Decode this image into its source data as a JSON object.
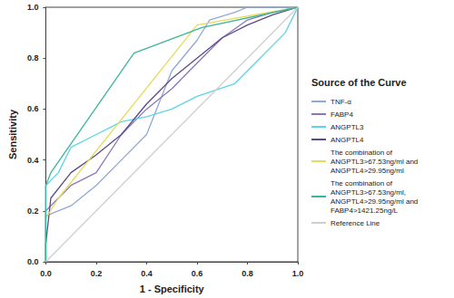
{
  "chart_data": {
    "type": "line",
    "x_label": "1 - Specificity",
    "y_label": "Sensitivity",
    "legend_title": "Source of the Curve",
    "legend": "right",
    "grid": false,
    "xlim": [
      0,
      1
    ],
    "ylim": [
      0,
      1
    ],
    "xticks": [
      {
        "value": 0,
        "label": "0.0"
      },
      0.2,
      0.4,
      0.6,
      0.8,
      {
        "value": 1,
        "label": "1.0"
      }
    ],
    "yticks": [
      {
        "value": 0,
        "label": "0.0"
      },
      0.2,
      0.4,
      0.6,
      0.8,
      {
        "value": 1,
        "label": "1.0"
      }
    ],
    "series": [
      {
        "name": "TNF-α",
        "color": "#8fa8d8",
        "marker": "none",
        "line_style": "solid",
        "x": [
          0,
          0,
          0.1,
          0.2,
          0.3,
          0.4,
          0.5,
          0.6,
          0.65,
          0.75,
          0.8,
          1
        ],
        "values": [
          0,
          0.18,
          0.22,
          0.3,
          0.4,
          0.5,
          0.75,
          0.87,
          0.95,
          0.98,
          1,
          1
        ]
      },
      {
        "name": "FABP4",
        "color": "#8a78b8",
        "marker": "none",
        "line_style": "solid",
        "x": [
          0,
          0,
          0.05,
          0.1,
          0.2,
          0.3,
          0.4,
          0.5,
          0.6,
          0.7,
          0.8,
          0.9,
          1
        ],
        "values": [
          0,
          0.2,
          0.25,
          0.3,
          0.35,
          0.5,
          0.6,
          0.68,
          0.78,
          0.88,
          0.95,
          0.98,
          1
        ]
      },
      {
        "name": "ANGPTL3",
        "color": "#5ad6ea",
        "marker": "none",
        "line_style": "solid",
        "x": [
          0,
          0,
          0.05,
          0.1,
          0.2,
          0.3,
          0.4,
          0.5,
          0.6,
          0.75,
          0.8,
          0.9,
          0.95,
          1
        ],
        "values": [
          0,
          0.3,
          0.35,
          0.45,
          0.5,
          0.55,
          0.57,
          0.6,
          0.65,
          0.7,
          0.75,
          0.85,
          0.9,
          1
        ]
      },
      {
        "name": "ANGPTL4",
        "color": "#5b4a8b",
        "marker": "none",
        "line_style": "solid",
        "x": [
          0,
          0,
          0.02,
          0.1,
          0.2,
          0.3,
          0.4,
          0.5,
          0.6,
          0.7,
          0.8,
          0.9,
          1
        ],
        "values": [
          0,
          0.07,
          0.25,
          0.35,
          0.42,
          0.5,
          0.62,
          0.72,
          0.8,
          0.88,
          0.93,
          0.97,
          1
        ]
      },
      {
        "name": "The combination of ANGPTL3>67.53ng/ml and ANGPTL4>29.95ng/ml",
        "color": "#e6dc5a",
        "marker": "none",
        "line_style": "solid",
        "x": [
          0,
          0,
          0.05,
          0.6,
          1
        ],
        "values": [
          0,
          0.17,
          0.25,
          0.93,
          1
        ]
      },
      {
        "name": "The combination of ANGPTL3>67.53ng/ml, ANGPTL4>29.95ng/ml and FABP4>1421.25ng/L",
        "color": "#3cb59a",
        "marker": "none",
        "line_style": "solid",
        "x": [
          0,
          0,
          0.02,
          0.35,
          0.62,
          1
        ],
        "values": [
          0,
          0.3,
          0.35,
          0.82,
          0.92,
          1
        ]
      },
      {
        "name": "Reference Line",
        "color": "#cfcfcf",
        "marker": "none",
        "line_style": "solid",
        "x": [
          0,
          1
        ],
        "values": [
          0,
          1
        ]
      }
    ]
  }
}
